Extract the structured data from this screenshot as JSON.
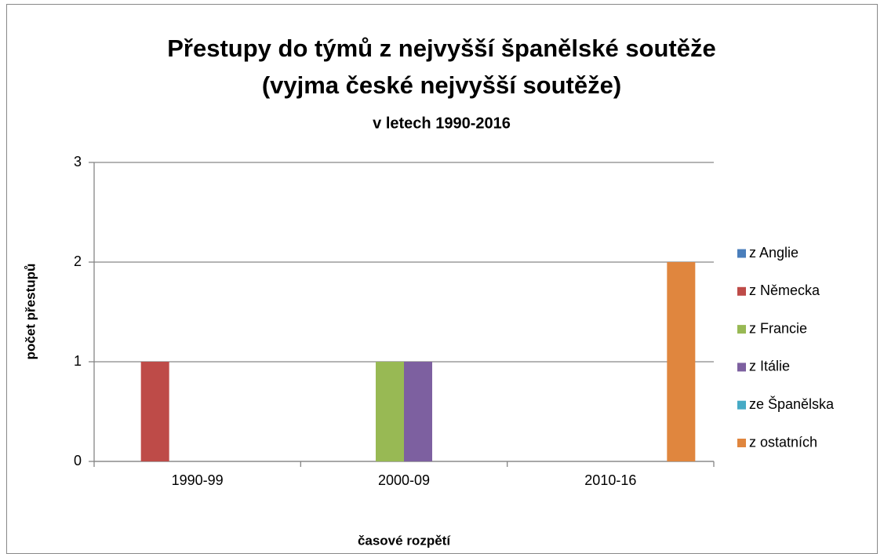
{
  "chart_data": {
    "type": "bar",
    "title": [
      "Přestupy do týmů z nejvyšší španělské soutěže",
      "(vyjma české nejvyšší soutěže)"
    ],
    "subtitle": "v letech 1990-2016",
    "xlabel": "časové rozpětí",
    "ylabel": "počet přestupů",
    "categories": [
      "1990-99",
      "2000-09",
      "2010-16"
    ],
    "series": [
      {
        "name": "z Anglie",
        "color": "#4a7ebb",
        "values": [
          0,
          0,
          0
        ]
      },
      {
        "name": "z Německa",
        "color": "#be4b48",
        "values": [
          1,
          0,
          0
        ]
      },
      {
        "name": "z Francie",
        "color": "#98b954",
        "values": [
          0,
          1,
          0
        ]
      },
      {
        "name": "z Itálie",
        "color": "#7d60a0",
        "values": [
          0,
          1,
          0
        ]
      },
      {
        "name": "ze Španělska",
        "color": "#46aac5",
        "values": [
          0,
          0,
          0
        ]
      },
      {
        "name": "z ostatních",
        "color": "#e0863e",
        "values": [
          0,
          0,
          2
        ]
      }
    ],
    "ylim": [
      0,
      3
    ],
    "yticks": [
      0,
      1,
      2,
      3
    ],
    "grid": true,
    "legend": "right"
  }
}
